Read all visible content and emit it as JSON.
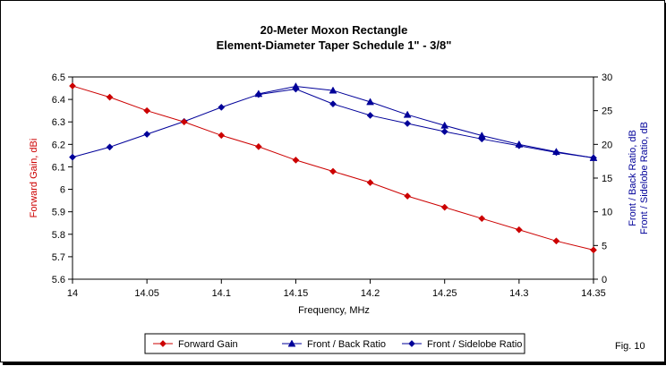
{
  "chart_data": {
    "type": "line",
    "title": "20-Meter Moxon Rectangle",
    "subtitle": "Element-Diameter Taper Schedule 1\" - 3/8\"",
    "xlabel": "Frequency, MHz",
    "ylabel_left": "Forward Gain, dBi",
    "ylabel_right_1": "Front / Back Ratio,  dB",
    "ylabel_right_2": "Front / Sidelobe Ratio,  dB",
    "x_ticks": [
      "14",
      "14.05",
      "14.1",
      "14.15",
      "14.2",
      "14.25",
      "14.3",
      "14.35"
    ],
    "y_left_ticks": [
      "5.6",
      "5.7",
      "5.8",
      "5.9",
      "6",
      "6.1",
      "6.2",
      "6.3",
      "6.4",
      "6.5"
    ],
    "y_right_ticks": [
      "0",
      "5",
      "10",
      "15",
      "20",
      "25",
      "30"
    ],
    "xlim": [
      14,
      14.35
    ],
    "ylim_left": [
      5.6,
      6.5
    ],
    "ylim_right": [
      0,
      30
    ],
    "x": [
      14.0,
      14.025,
      14.05,
      14.075,
      14.1,
      14.125,
      14.15,
      14.175,
      14.2,
      14.225,
      14.25,
      14.275,
      14.3,
      14.325,
      14.35
    ],
    "series": [
      {
        "name": "Forward Gain",
        "axis": "left",
        "color": "#cc0000",
        "marker": "diamond",
        "values": [
          6.46,
          6.41,
          6.35,
          6.3,
          6.24,
          6.19,
          6.13,
          6.08,
          6.03,
          5.97,
          5.92,
          5.87,
          5.82,
          5.77,
          5.73
        ]
      },
      {
        "name": "Front / Back Ratio",
        "axis": "right",
        "color": "#000099",
        "marker": "triangle",
        "values": [
          null,
          null,
          null,
          null,
          null,
          27.5,
          28.6,
          28.0,
          26.3,
          24.4,
          22.8,
          21.3,
          20.0,
          18.9,
          18.0
        ]
      },
      {
        "name": "Front / Sidelobe Ratio",
        "axis": "right",
        "color": "#000099",
        "marker": "diamond",
        "values": [
          18.1,
          19.6,
          21.5,
          23.4,
          25.5,
          27.4,
          28.2,
          26.0,
          24.3,
          23.1,
          21.9,
          20.8,
          19.8,
          18.8,
          18.0
        ]
      }
    ],
    "legend": [
      "Forward Gain",
      "Front / Back Ratio",
      "Front / Sidelobe Ratio"
    ],
    "legend_position": "bottom",
    "grid": false
  },
  "figure_label": "Fig. 10"
}
